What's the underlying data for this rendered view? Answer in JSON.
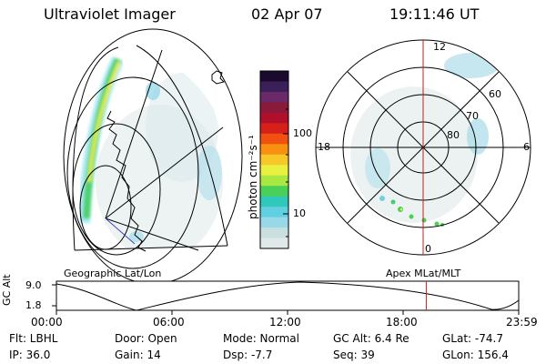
{
  "header": {
    "instrument": "Ultraviolet Imager",
    "date": "02 Apr 07",
    "time": "19:11:46 UT"
  },
  "colorbar": {
    "label": "photon cm⁻²s⁻¹",
    "ticks": [
      "100",
      "10"
    ],
    "colors": [
      "#1a0a2e",
      "#3a1f5a",
      "#6a2a6a",
      "#8a1a3a",
      "#b0102a",
      "#d8201a",
      "#f05010",
      "#f89010",
      "#f8c828",
      "#e8f040",
      "#a8e840",
      "#48d058",
      "#30c8b8",
      "#60d0e0",
      "#98d8e8",
      "#c8e0e0",
      "#e0e8e8"
    ]
  },
  "left_map": {
    "label": "Geographic Lat/Lon"
  },
  "polar_map": {
    "label": "Apex MLat/MLT",
    "mlt_labels": {
      "top": "12",
      "left": "18",
      "right": "6",
      "bottom": "0"
    },
    "lat_labels": [
      "60",
      "70",
      "80"
    ]
  },
  "timeline": {
    "ylabel": "GC Alt",
    "y_ticks": [
      "9.0",
      "1.8"
    ],
    "x_ticks": [
      "00:00",
      "06:00",
      "12:00",
      "18:00",
      "23:59"
    ],
    "current_time_fraction": 0.8
  },
  "info": {
    "flt": "Flt: LBHL",
    "ip": "IP: 36.0",
    "door": "Door: Open",
    "gain": "Gain: 14",
    "mode": "Mode: Normal",
    "dsp": "Dsp:   -7.7",
    "gc_alt": "GC Alt: 6.4 Re",
    "seq": "Seq: 39",
    "glat": "GLat: -74.7",
    "glon": "GLon: 156.4"
  }
}
